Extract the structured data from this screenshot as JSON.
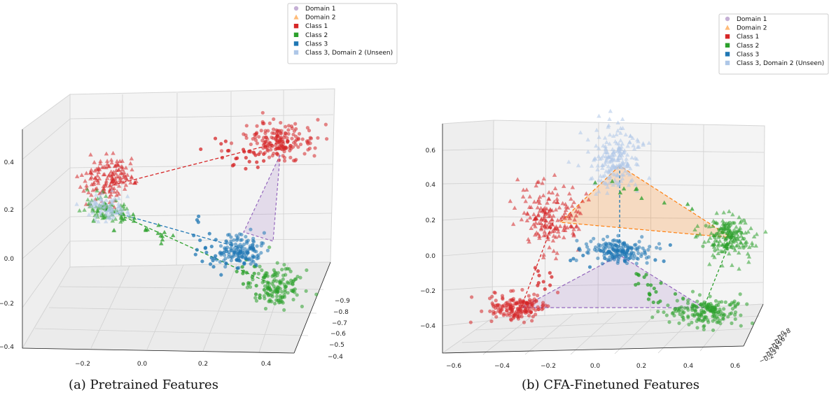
{
  "chart_data": [
    {
      "type": "scatter",
      "projection": "3d",
      "caption": "(a) Pretrained Features",
      "legend": {
        "placement": "top-right",
        "entries": [
          {
            "label": "Domain 1",
            "marker": "circle",
            "color": "#c5b0d5"
          },
          {
            "label": "Domain 2",
            "marker": "triangle",
            "color": "#ffbb78"
          },
          {
            "label": "Class 1",
            "marker": "square",
            "color": "#d62728"
          },
          {
            "label": "Class 2",
            "marker": "square",
            "color": "#2ca02c"
          },
          {
            "label": "Class 3",
            "marker": "square",
            "color": "#1f77b4"
          },
          {
            "label": "Class 3, Domain 2 (Unseen)",
            "marker": "square",
            "color": "#aec7e8"
          }
        ]
      },
      "axes": {
        "x_ticks": [
          "−0.2",
          "0.0",
          "0.2",
          "0.4"
        ],
        "y_ticks": [
          "−0.9",
          "−0.8",
          "−0.7",
          "−0.6",
          "−0.5",
          "−0.4"
        ],
        "z_ticks": [
          "0.4",
          "0.2",
          "0.0",
          "−0.2",
          "−0.4"
        ],
        "grid": true
      },
      "centroids": [
        {
          "class": "Class 1",
          "domain": "Domain 1"
        },
        {
          "class": "Class 1",
          "domain": "Domain 2"
        },
        {
          "class": "Class 2",
          "domain": "Domain 1"
        },
        {
          "class": "Class 2",
          "domain": "Domain 2"
        },
        {
          "class": "Class 3",
          "domain": "Domain 1"
        },
        {
          "class": "Class 3",
          "domain": "Domain 2 (Unseen)"
        }
      ]
    },
    {
      "type": "scatter",
      "projection": "3d",
      "caption": "(b) CFA-Finetuned Features",
      "legend": {
        "placement": "top-right",
        "entries": [
          {
            "label": "Domain 1",
            "marker": "circle",
            "color": "#c5b0d5"
          },
          {
            "label": "Domain 2",
            "marker": "triangle",
            "color": "#ffbb78"
          },
          {
            "label": "Class 1",
            "marker": "square",
            "color": "#d62728"
          },
          {
            "label": "Class 2",
            "marker": "square",
            "color": "#2ca02c"
          },
          {
            "label": "Class 3",
            "marker": "square",
            "color": "#1f77b4"
          },
          {
            "label": "Class 3, Domain 2 (Unseen)",
            "marker": "square",
            "color": "#aec7e8"
          }
        ]
      },
      "axes": {
        "x_ticks": [
          "−0.6",
          "−0.4",
          "−0.2",
          "0.0",
          "0.2",
          "0.4",
          "0.6"
        ],
        "y_ticks": [
          "−0.8",
          "−0.7",
          "−0.6",
          "−0.5",
          "−0.4",
          "−0.3",
          "−0.2"
        ],
        "z_ticks": [
          "0.6",
          "0.4",
          "0.2",
          "0.0",
          "−0.2",
          "−0.4"
        ],
        "grid": true
      },
      "centroids": [
        {
          "class": "Class 1",
          "domain": "Domain 1"
        },
        {
          "class": "Class 1",
          "domain": "Domain 2"
        },
        {
          "class": "Class 2",
          "domain": "Domain 1"
        },
        {
          "class": "Class 2",
          "domain": "Domain 2"
        },
        {
          "class": "Class 3",
          "domain": "Domain 1"
        },
        {
          "class": "Class 3",
          "domain": "Domain 2 (Unseen)"
        }
      ]
    }
  ]
}
